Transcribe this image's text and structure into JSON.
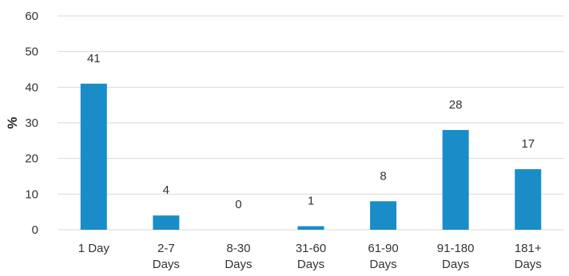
{
  "chart_data": {
    "type": "bar",
    "title": "",
    "xlabel": "",
    "ylabel": "%",
    "ylim": [
      0,
      60
    ],
    "yticks": [
      "0",
      "10",
      "20",
      "30",
      "40",
      "50",
      "60"
    ],
    "grid": true,
    "legend": "none",
    "bar_color": "#1a8dc8",
    "categories": [
      [
        "1 Day"
      ],
      [
        "2-7",
        "Days"
      ],
      [
        "8-30",
        "Days"
      ],
      [
        "31-60",
        "Days"
      ],
      [
        "61-90",
        "Days"
      ],
      [
        "91-180",
        "Days"
      ],
      [
        "181+",
        "Days"
      ]
    ],
    "values": [
      41,
      4,
      0,
      1,
      8,
      28,
      17
    ],
    "data_labels": [
      "41",
      "4",
      "0",
      "1",
      "8",
      "28",
      "17"
    ]
  }
}
